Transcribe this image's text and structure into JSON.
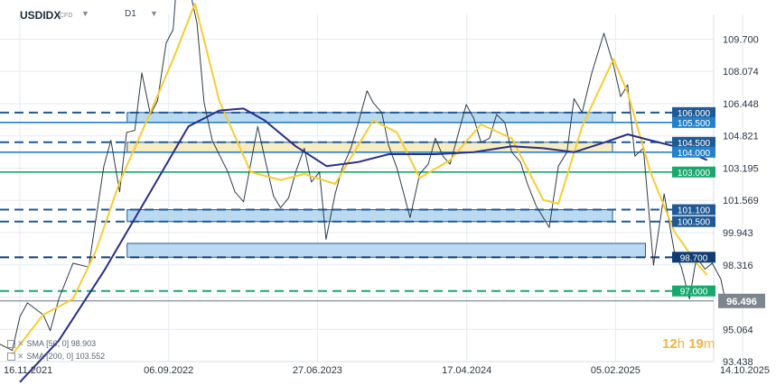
{
  "header": {
    "symbol": "USDIDX",
    "instrument_type": "CFD",
    "timeframe": "D1"
  },
  "timer": {
    "hours": "12",
    "h": "h",
    "minutes": "19",
    "m": "m"
  },
  "indicators": [
    {
      "label": "SMA",
      "params": "[50, 0]",
      "value": "98.903",
      "color": "#f5cd34"
    },
    {
      "label": "SMA",
      "params": "[200, 0]",
      "value": "103.552",
      "color": "#2a2f86"
    }
  ],
  "chart_data": {
    "type": "line",
    "ylim": [
      93.438,
      110.95
    ],
    "y_ticks": [
      "109.700",
      "108.074",
      "106.448",
      "104.821",
      "103.195",
      "101.569",
      "99.943",
      "98.316",
      "96.690",
      "95.064",
      "93.438"
    ],
    "x_ticks": [
      "16.11.2021",
      "06.09.2022",
      "27.06.2023",
      "17.04.2024",
      "05.02.2025",
      "14.10.2025"
    ],
    "current_price": "96.496",
    "levels": [
      {
        "value": "106.000",
        "style": "dashed",
        "color": "#1f5a94"
      },
      {
        "value": "105.500",
        "style": "solid",
        "color": "#2680c8"
      },
      {
        "value": "104.500",
        "style": "dashed",
        "color": "#1f5a94"
      },
      {
        "value": "104.000",
        "style": "solid",
        "color": "#2680c8"
      },
      {
        "value": "103.000",
        "style": "solid",
        "color": "#18a86b"
      },
      {
        "value": "101.100",
        "style": "dashed",
        "color": "#1f5a94"
      },
      {
        "value": "100.500",
        "style": "dashed",
        "color": "#1f5a94"
      },
      {
        "value": "98.700",
        "style": "dashed",
        "color": "#0f3d73"
      },
      {
        "value": "97.000",
        "style": "dashed",
        "color": "#18a86b"
      }
    ],
    "zones": [
      {
        "from": "16.06.2022",
        "to": "30.01.2025",
        "low": 105.5,
        "high": 106.0,
        "fill": "#aed4f0"
      },
      {
        "from": "16.06.2022",
        "to": "30.01.2025",
        "low": 104.0,
        "high": 104.5,
        "fill": "#f4eab8"
      },
      {
        "from": "16.06.2022",
        "to": "30.01.2025",
        "low": 100.5,
        "high": 101.1,
        "fill": "#aed4f0"
      },
      {
        "from": "16.06.2022",
        "to": "05.04.2025",
        "low": 98.7,
        "high": 99.4,
        "fill": "#aed4f0"
      }
    ],
    "series": [
      {
        "name": "USDIDX",
        "color": "#2f3b47",
        "points": [
          [
            "2021-09-01",
            93.0
          ],
          [
            "2021-10-01",
            94.4
          ],
          [
            "2021-11-01",
            94.0
          ],
          [
            "2021-11-16",
            95.7
          ],
          [
            "2021-12-01",
            96.4
          ],
          [
            "2022-01-01",
            95.8
          ],
          [
            "2022-01-15",
            95.0
          ],
          [
            "2022-02-01",
            96.6
          ],
          [
            "2022-03-01",
            98.4
          ],
          [
            "2022-04-01",
            98.2
          ],
          [
            "2022-05-01",
            103.3
          ],
          [
            "2022-05-15",
            104.6
          ],
          [
            "2022-06-01",
            102.0
          ],
          [
            "2022-06-15",
            105.0
          ],
          [
            "2022-07-01",
            105.1
          ],
          [
            "2022-07-15",
            108.0
          ],
          [
            "2022-08-01",
            105.9
          ],
          [
            "2022-08-15",
            106.6
          ],
          [
            "2022-09-01",
            109.5
          ],
          [
            "2022-09-15",
            110.2
          ],
          [
            "2022-09-28",
            114.8
          ],
          [
            "2022-10-15",
            112.5
          ],
          [
            "2022-11-01",
            110.5
          ],
          [
            "2022-11-15",
            106.5
          ],
          [
            "2022-12-01",
            104.6
          ],
          [
            "2023-01-01",
            103.0
          ],
          [
            "2023-01-15",
            102.0
          ],
          [
            "2023-02-01",
            101.5
          ],
          [
            "2023-03-01",
            105.3
          ],
          [
            "2023-03-15",
            103.7
          ],
          [
            "2023-04-01",
            101.8
          ],
          [
            "2023-04-15",
            101.2
          ],
          [
            "2023-05-01",
            101.7
          ],
          [
            "2023-05-15",
            103.0
          ],
          [
            "2023-06-01",
            104.2
          ],
          [
            "2023-06-15",
            102.5
          ],
          [
            "2023-07-01",
            103.0
          ],
          [
            "2023-07-14",
            99.6
          ],
          [
            "2023-08-01",
            101.9
          ],
          [
            "2023-08-15",
            103.2
          ],
          [
            "2023-09-01",
            104.2
          ],
          [
            "2023-09-15",
            105.4
          ],
          [
            "2023-10-03",
            107.1
          ],
          [
            "2023-10-15",
            106.5
          ],
          [
            "2023-11-01",
            106.0
          ],
          [
            "2023-11-15",
            104.3
          ],
          [
            "2023-12-01",
            103.2
          ],
          [
            "2023-12-27",
            100.7
          ],
          [
            "2024-01-15",
            102.9
          ],
          [
            "2024-02-01",
            103.4
          ],
          [
            "2024-02-15",
            104.7
          ],
          [
            "2024-03-01",
            103.8
          ],
          [
            "2024-03-15",
            103.4
          ],
          [
            "2024-04-01",
            105.0
          ],
          [
            "2024-04-16",
            106.4
          ],
          [
            "2024-05-01",
            105.7
          ],
          [
            "2024-05-15",
            104.5
          ],
          [
            "2024-06-01",
            104.7
          ],
          [
            "2024-06-15",
            105.9
          ],
          [
            "2024-07-01",
            105.5
          ],
          [
            "2024-07-15",
            104.0
          ],
          [
            "2024-08-01",
            103.5
          ],
          [
            "2024-08-15",
            102.4
          ],
          [
            "2024-09-01",
            101.3
          ],
          [
            "2024-09-27",
            100.2
          ],
          [
            "2024-10-15",
            103.3
          ],
          [
            "2024-11-01",
            104.0
          ],
          [
            "2024-11-15",
            106.7
          ],
          [
            "2024-12-01",
            106.0
          ],
          [
            "2024-12-20",
            108.0
          ],
          [
            "2025-01-13",
            110.0
          ],
          [
            "2025-02-01",
            108.4
          ],
          [
            "2025-02-15",
            106.8
          ],
          [
            "2025-03-01",
            107.4
          ],
          [
            "2025-03-15",
            103.8
          ],
          [
            "2025-04-01",
            104.2
          ],
          [
            "2025-04-21",
            98.3
          ],
          [
            "2025-05-12",
            101.9
          ],
          [
            "2025-06-01",
            99.0
          ],
          [
            "2025-06-15",
            98.2
          ],
          [
            "2025-07-01",
            96.6
          ],
          [
            "2025-07-15",
            98.7
          ],
          [
            "2025-08-01",
            98.1
          ],
          [
            "2025-08-15",
            98.4
          ],
          [
            "2025-09-01",
            97.6
          ],
          [
            "2025-09-10",
            96.496
          ]
        ]
      },
      {
        "name": "SMA [50, 0]",
        "color": "#f5cd34",
        "points": [
          [
            "2021-11-01",
            93.8
          ],
          [
            "2022-01-01",
            95.8
          ],
          [
            "2022-03-01",
            96.6
          ],
          [
            "2022-04-15",
            99.0
          ],
          [
            "2022-06-01",
            102.5
          ],
          [
            "2022-08-01",
            106.0
          ],
          [
            "2022-09-15",
            108.7
          ],
          [
            "2022-10-28",
            111.5
          ],
          [
            "2022-12-15",
            106.6
          ],
          [
            "2023-02-15",
            103.0
          ],
          [
            "2023-04-15",
            102.6
          ],
          [
            "2023-06-01",
            102.9
          ],
          [
            "2023-08-01",
            102.4
          ],
          [
            "2023-10-15",
            105.6
          ],
          [
            "2023-12-01",
            105.0
          ],
          [
            "2024-01-15",
            102.7
          ],
          [
            "2024-03-15",
            103.6
          ],
          [
            "2024-05-15",
            105.4
          ],
          [
            "2024-07-15",
            104.7
          ],
          [
            "2024-09-15",
            101.6
          ],
          [
            "2024-10-15",
            101.4
          ],
          [
            "2024-12-01",
            105.3
          ],
          [
            "2025-02-01",
            108.7
          ],
          [
            "2025-03-01",
            107.0
          ],
          [
            "2025-04-15",
            103.0
          ],
          [
            "2025-06-01",
            100.0
          ],
          [
            "2025-07-15",
            98.4
          ],
          [
            "2025-08-05",
            97.8
          ]
        ]
      },
      {
        "name": "SMA [200, 0]",
        "color": "#2a2f86",
        "points": [
          [
            "2021-11-16",
            92.4
          ],
          [
            "2022-02-01",
            94.5
          ],
          [
            "2022-05-01",
            98.0
          ],
          [
            "2022-08-01",
            102.0
          ],
          [
            "2022-10-15",
            105.3
          ],
          [
            "2022-12-15",
            106.1
          ],
          [
            "2023-02-01",
            106.2
          ],
          [
            "2023-03-15",
            105.6
          ],
          [
            "2023-05-15",
            104.3
          ],
          [
            "2023-07-15",
            103.3
          ],
          [
            "2023-09-15",
            103.5
          ],
          [
            "2023-11-15",
            103.9
          ],
          [
            "2024-02-15",
            103.9
          ],
          [
            "2024-05-01",
            104.0
          ],
          [
            "2024-07-15",
            104.3
          ],
          [
            "2024-09-15",
            104.2
          ],
          [
            "2024-11-15",
            104.0
          ],
          [
            "2025-01-15",
            104.5
          ],
          [
            "2025-03-01",
            104.9
          ],
          [
            "2025-04-15",
            104.6
          ],
          [
            "2025-06-01",
            104.3
          ],
          [
            "2025-08-05",
            103.6
          ]
        ]
      }
    ]
  }
}
